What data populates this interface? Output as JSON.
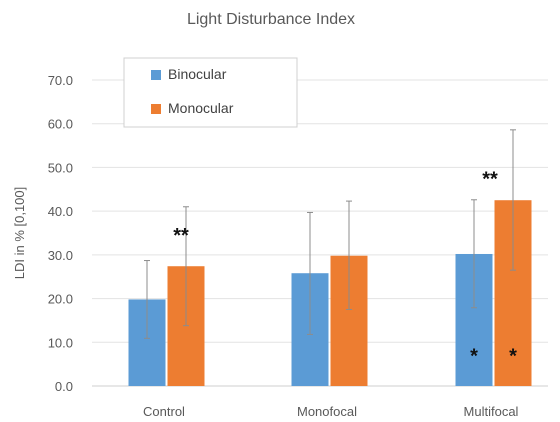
{
  "chart_data": {
    "type": "bar",
    "title": "Light Disturbance Index",
    "xlabel": "",
    "ylabel": "LDI in % [0,100]",
    "categories": [
      "Control",
      "Monofocal",
      "Multifocal"
    ],
    "ylim": [
      0,
      70
    ],
    "y_ticks": [
      0.0,
      10.0,
      20.0,
      30.0,
      40.0,
      50.0,
      60.0,
      70.0
    ],
    "y_tick_labels": [
      "0.0",
      "10.0",
      "20.0",
      "30.0",
      "40.0",
      "50.0",
      "60.0",
      "70.0"
    ],
    "grid": true,
    "legend_position": "top-left",
    "series": [
      {
        "name": "Binocular",
        "color": "#5b9bd5",
        "values": [
          19.8,
          25.8,
          30.2
        ],
        "error_low": [
          10.9,
          11.8,
          17.9
        ],
        "error_high": [
          28.7,
          39.7,
          42.6
        ]
      },
      {
        "name": "Monocular",
        "color": "#ed7d31",
        "values": [
          27.4,
          29.8,
          42.5
        ],
        "error_low": [
          13.8,
          17.5,
          26.5
        ],
        "error_high": [
          41.0,
          42.3,
          58.6
        ]
      }
    ],
    "annotations": [
      {
        "text": "**",
        "category": "Control",
        "y": 34.5
      },
      {
        "text": "**",
        "category": "Multifocal",
        "y": 47.5
      },
      {
        "text": "*",
        "category": "Multifocal",
        "series": "Binocular",
        "y": 7.0
      },
      {
        "text": "*",
        "category": "Multifocal",
        "series": "Monocular",
        "y": 7.0
      }
    ]
  }
}
